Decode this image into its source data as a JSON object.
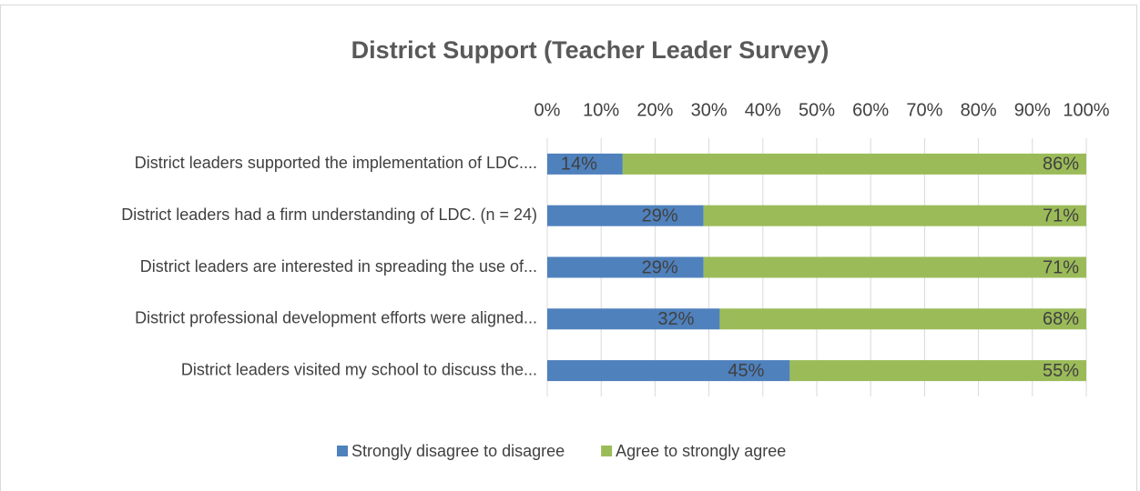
{
  "chart_data": {
    "type": "stacked_bar_horizontal",
    "title": "District Support (Teacher Leader Survey)",
    "categories": [
      "District leaders supported the implementation of LDC....",
      "District leaders had a firm understanding of LDC. (n = 24)",
      "District leaders are interested in spreading the use of...",
      "District professional development efforts were aligned...",
      "District leaders visited my school to discuss the..."
    ],
    "series": [
      {
        "name": "Strongly disagree to disagree",
        "color": "#4f81bd",
        "values": [
          14,
          29,
          29,
          32,
          45
        ],
        "value_labels": [
          "14%",
          "29%",
          "29%",
          "32%",
          "45%"
        ]
      },
      {
        "name": "Agree to strongly agree",
        "color": "#9bbb59",
        "values": [
          86,
          71,
          71,
          68,
          55
        ],
        "value_labels": [
          "86%",
          "71%",
          "71%",
          "68%",
          "55%"
        ]
      }
    ],
    "xlim": [
      0,
      100
    ],
    "xticks": [
      {
        "value": 0,
        "label": "0%"
      },
      {
        "value": 10,
        "label": "10%"
      },
      {
        "value": 20,
        "label": "20%"
      },
      {
        "value": 30,
        "label": "30%"
      },
      {
        "value": 40,
        "label": "40%"
      },
      {
        "value": 50,
        "label": "50%"
      },
      {
        "value": 60,
        "label": "60%"
      },
      {
        "value": 70,
        "label": "70%"
      },
      {
        "value": 80,
        "label": "80%"
      },
      {
        "value": 90,
        "label": "90%"
      },
      {
        "value": 100,
        "label": "100%"
      }
    ],
    "grid": true,
    "legend": "bottom"
  }
}
